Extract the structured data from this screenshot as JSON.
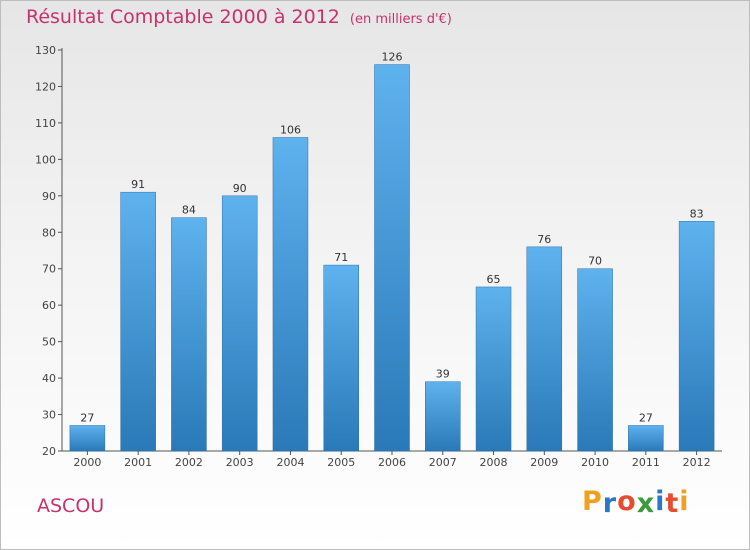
{
  "header": {
    "title": "Résultat Comptable 2000 à 2012",
    "unit": "(en milliers d'€)"
  },
  "location": "ASCOU",
  "logo": {
    "letters": [
      "P",
      "r",
      "o",
      "x",
      "i",
      "t",
      "i"
    ],
    "colors": [
      "#f0a020",
      "#2a78c8",
      "#e64c2e",
      "#3a9a3c",
      "#2a78c8",
      "#e64c2e",
      "#f0a020"
    ]
  },
  "colors": {
    "bar_light": "#5eb2ee",
    "bar_dark": "#2a79b8",
    "title": "#c8326a"
  },
  "chart_data": {
    "type": "bar",
    "title": "Résultat Comptable 2000 à 2012",
    "subtitle": "(en milliers d'€)",
    "xlabel": "",
    "ylabel": "",
    "categories": [
      "2000",
      "2001",
      "2002",
      "2003",
      "2004",
      "2005",
      "2006",
      "2007",
      "2008",
      "2009",
      "2010",
      "2011",
      "2012"
    ],
    "values": [
      27,
      91,
      84,
      90,
      106,
      71,
      126,
      39,
      65,
      76,
      70,
      27,
      83
    ],
    "ylim": [
      20,
      130
    ],
    "yticks": [
      20,
      30,
      40,
      50,
      60,
      70,
      80,
      90,
      100,
      110,
      120,
      130
    ],
    "grid": false,
    "legend": "none"
  }
}
